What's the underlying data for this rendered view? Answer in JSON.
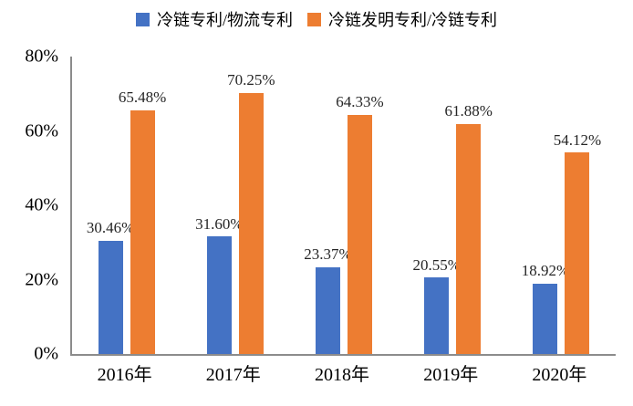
{
  "chart_data": {
    "type": "bar",
    "categories": [
      "2016年",
      "2017年",
      "2018年",
      "2019年",
      "2020年"
    ],
    "series": [
      {
        "name": "冷链专利/物流专利",
        "color": "#4472C4",
        "values": [
          30.46,
          31.6,
          23.37,
          20.55,
          18.92
        ],
        "labels": [
          "30.46%",
          "31.60%",
          "23.37%",
          "20.55%",
          "18.92%"
        ]
      },
      {
        "name": "冷链发明专利/冷链专利",
        "color": "#ED7D31",
        "values": [
          65.48,
          70.25,
          64.33,
          61.88,
          54.12
        ],
        "labels": [
          "65.48%",
          "70.25%",
          "64.33%",
          "61.88%",
          "54.12%"
        ]
      }
    ],
    "ylim": [
      0,
      80
    ],
    "y_ticks": [
      "80%",
      "60%",
      "40%",
      "20%",
      "0%"
    ],
    "grid": false,
    "legend_position": "top"
  },
  "colors": {
    "axis_line": "#8C8C8C",
    "data_label_text": "#262626"
  }
}
